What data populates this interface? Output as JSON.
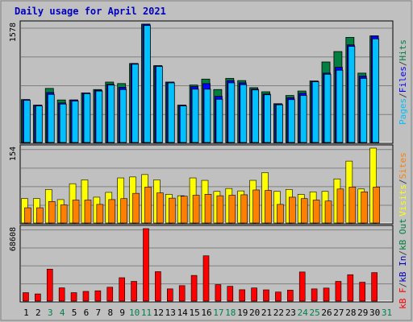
{
  "chart_data": {
    "type": "bar",
    "title": "Daily usage for April 2021",
    "categories": [
      "1",
      "2",
      "3",
      "4",
      "5",
      "6",
      "7",
      "8",
      "9",
      "10",
      "11",
      "12",
      "13",
      "14",
      "15",
      "16",
      "17",
      "18",
      "19",
      "20",
      "21",
      "22",
      "23",
      "24",
      "25",
      "26",
      "27",
      "28",
      "29",
      "30",
      "31"
    ],
    "weekend_days": [
      "3",
      "4",
      "10",
      "11",
      "17",
      "18",
      "24",
      "25",
      "31"
    ],
    "grid": true,
    "colors": {
      "hits": "#008040",
      "files": "#0000ff",
      "pages": "#00c0ff",
      "visits": "#ffff00",
      "sites": "#ff8000",
      "kbytes": "#ff0000",
      "kb_in": "#0000c0",
      "kb_out": "#008040",
      "title": "#0000c0",
      "weekday_label": "#000000",
      "weekend_label": "#00804a",
      "background": "#c0c0c0",
      "panel": "#c0c0c0"
    },
    "panels": [
      {
        "ymax_label": "1578",
        "ylim": [
          0,
          1578
        ],
        "right_labels": [
          "Pages",
          "/",
          "Files",
          "/",
          "Hits"
        ],
        "series": [
          {
            "name": "Hits",
            "values": [
              565,
              490,
              715,
              560,
              560,
              655,
              700,
              800,
              780,
              1050,
              1578,
              1020,
              800,
              490,
              760,
              840,
              700,
              850,
              820,
              725,
              670,
              510,
              620,
              680,
              815,
              1070,
              1210,
              1400,
              920,
              1420,
              null
            ]
          },
          {
            "name": "Files",
            "values": [
              565,
              490,
              660,
              520,
              560,
              655,
              690,
              770,
              730,
              1050,
              1578,
              1020,
              800,
              490,
              740,
              780,
              610,
              820,
              790,
              705,
              640,
              505,
              590,
              650,
              810,
              920,
              1000,
              1300,
              880,
              1420,
              null
            ]
          },
          {
            "name": "Pages",
            "values": [
              555,
              480,
              635,
              505,
              545,
              645,
              680,
              760,
              700,
              1040,
              1560,
              1010,
              790,
              480,
              705,
              705,
              570,
              790,
              765,
              695,
              630,
              495,
              565,
              620,
              805,
              905,
              960,
              1280,
              850,
              1380,
              null
            ]
          }
        ]
      },
      {
        "ymax_label": "154",
        "ylim": [
          0,
          154
        ],
        "right_labels": [
          "Visits",
          "/",
          "Sites"
        ],
        "series": [
          {
            "name": "Visits",
            "values": [
              49,
              49,
              68,
              47,
              80,
              88,
              52,
              62,
              92,
              94,
              99,
              88,
              58,
              55,
              92,
              87,
              64,
              70,
              65,
              87,
              103,
              64,
              68,
              58,
              63,
              64,
              90,
              127,
              69,
              154,
              null
            ]
          },
          {
            "name": "Sites",
            "values": [
              30,
              30,
              43,
              36,
              46,
              46,
              37,
              47,
              49,
              60,
              73,
              61,
              50,
              54,
              56,
              58,
              55,
              56,
              57,
              67,
              66,
              37,
              52,
              49,
              46,
              44,
              69,
              73,
              63,
              73,
              null
            ]
          }
        ]
      },
      {
        "ymax_label": "68608",
        "ylim": [
          0,
          68608
        ],
        "right_labels": [
          "kB F",
          "/",
          "kB In",
          "/",
          "kB Out"
        ],
        "series": [
          {
            "name": "kB F",
            "values": [
              7300,
              6100,
              29800,
              11900,
              7300,
              8500,
              9100,
              12500,
              21600,
              18100,
              68608,
              27400,
              10900,
              14000,
              23800,
              42600,
              15000,
              13400,
              10100,
              11800,
              10000,
              7900,
              9700,
              27100,
              10900,
              11700,
              18100,
              24500,
              17300,
              26500,
              null
            ]
          }
        ]
      }
    ]
  }
}
